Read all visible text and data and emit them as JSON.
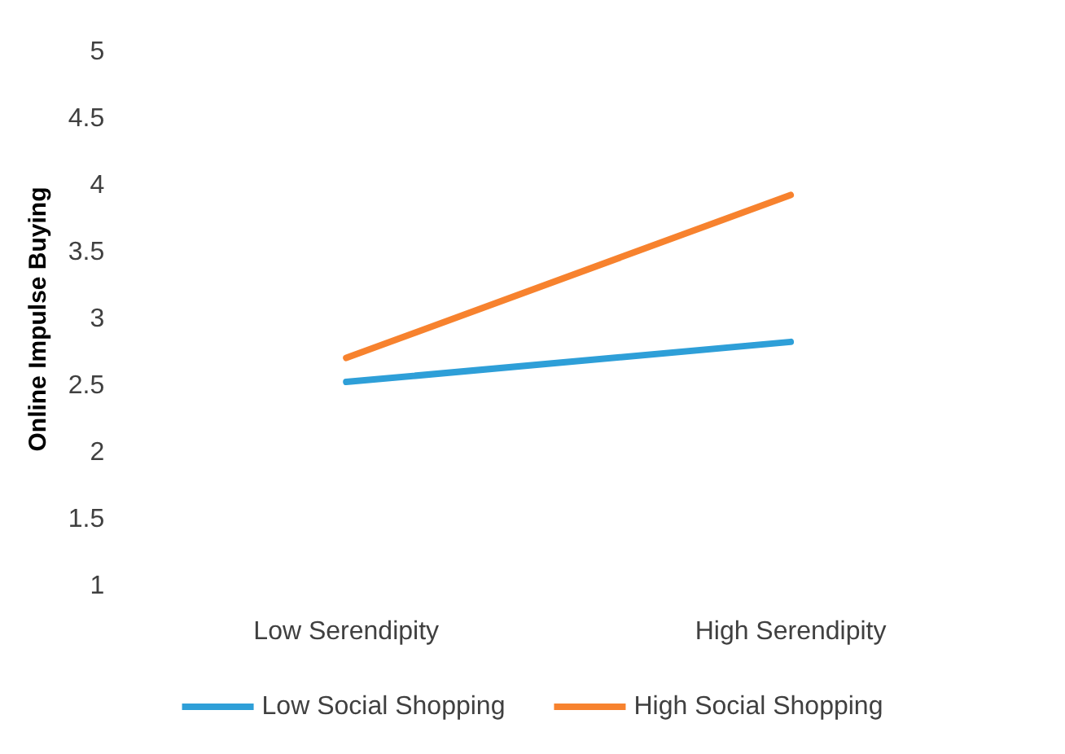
{
  "chart_data": {
    "type": "line",
    "ylabel": "Online Impulse Buying",
    "categories": [
      "Low Serendipity",
      "High Serendipity"
    ],
    "series": [
      {
        "name": "Low Social Shopping",
        "color": "#2e9fd8",
        "values": [
          2.53,
          2.83
        ]
      },
      {
        "name": "High Social Shopping",
        "color": "#f7822e",
        "values": [
          2.71,
          3.93
        ]
      }
    ],
    "ylim": [
      1,
      5
    ],
    "yticks": [
      1,
      1.5,
      2,
      2.5,
      3,
      3.5,
      4,
      4.5,
      5
    ],
    "grid": false,
    "legend": "bottom",
    "marker": "none",
    "line_style": "solid"
  }
}
